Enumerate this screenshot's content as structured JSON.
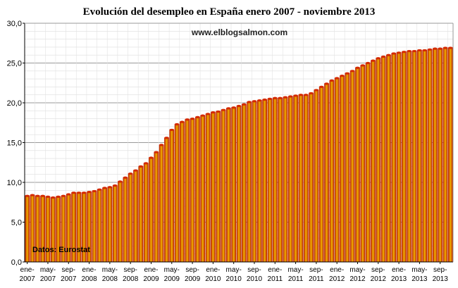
{
  "chart_data": {
    "type": "bar",
    "title": "Evolución del desempleo en España enero 2007 - noviembre 2013",
    "watermark": "www.elblogsalmon.com",
    "source_note": "Datos: Eurostat",
    "xlabel": "",
    "ylabel": "",
    "ylim": [
      0,
      30
    ],
    "y_ticks": [
      "0,0",
      "5,0",
      "10,0",
      "15,0",
      "20,0",
      "25,0",
      "30,0"
    ],
    "x_tick_labels": [
      [
        "ene-",
        "2007"
      ],
      [
        "may-",
        "2007"
      ],
      [
        "sep-",
        "2007"
      ],
      [
        "ene-",
        "2008"
      ],
      [
        "may-",
        "2008"
      ],
      [
        "sep-",
        "2008"
      ],
      [
        "ene-",
        "2009"
      ],
      [
        "may-",
        "2009"
      ],
      [
        "sep-",
        "2009"
      ],
      [
        "ene-",
        "2010"
      ],
      [
        "may-",
        "2010"
      ],
      [
        "sep-",
        "2010"
      ],
      [
        "ene-",
        "2011"
      ],
      [
        "may-",
        "2011"
      ],
      [
        "sep-",
        "2011"
      ],
      [
        "ene-",
        "2012"
      ],
      [
        "may-",
        "2012"
      ],
      [
        "sep-",
        "2012"
      ],
      [
        "ene-",
        "2013"
      ],
      [
        "may-",
        "2013"
      ],
      [
        "sep-",
        "2013"
      ]
    ],
    "grid": true,
    "colors": {
      "bar_edge": "#c81e00",
      "bar_mid": "#e8a800",
      "grid": "#cccccc"
    },
    "categories": [
      "2007-01",
      "2007-02",
      "2007-03",
      "2007-04",
      "2007-05",
      "2007-06",
      "2007-07",
      "2007-08",
      "2007-09",
      "2007-10",
      "2007-11",
      "2007-12",
      "2008-01",
      "2008-02",
      "2008-03",
      "2008-04",
      "2008-05",
      "2008-06",
      "2008-07",
      "2008-08",
      "2008-09",
      "2008-10",
      "2008-11",
      "2008-12",
      "2009-01",
      "2009-02",
      "2009-03",
      "2009-04",
      "2009-05",
      "2009-06",
      "2009-07",
      "2009-08",
      "2009-09",
      "2009-10",
      "2009-11",
      "2009-12",
      "2010-01",
      "2010-02",
      "2010-03",
      "2010-04",
      "2010-05",
      "2010-06",
      "2010-07",
      "2010-08",
      "2010-09",
      "2010-10",
      "2010-11",
      "2010-12",
      "2011-01",
      "2011-02",
      "2011-03",
      "2011-04",
      "2011-05",
      "2011-06",
      "2011-07",
      "2011-08",
      "2011-09",
      "2011-10",
      "2011-11",
      "2011-12",
      "2012-01",
      "2012-02",
      "2012-03",
      "2012-04",
      "2012-05",
      "2012-06",
      "2012-07",
      "2012-08",
      "2012-09",
      "2012-10",
      "2012-11",
      "2012-12",
      "2013-01",
      "2013-02",
      "2013-03",
      "2013-04",
      "2013-05",
      "2013-06",
      "2013-07",
      "2013-08",
      "2013-09",
      "2013-10",
      "2013-11"
    ],
    "values": [
      8.3,
      8.4,
      8.3,
      8.3,
      8.2,
      8.1,
      8.2,
      8.3,
      8.5,
      8.7,
      8.7,
      8.7,
      8.8,
      8.9,
      9.1,
      9.3,
      9.4,
      9.6,
      10.1,
      10.6,
      11.1,
      11.5,
      12.0,
      12.4,
      13.1,
      13.8,
      14.7,
      15.6,
      16.6,
      17.3,
      17.6,
      17.9,
      18.0,
      18.2,
      18.4,
      18.6,
      18.8,
      18.9,
      19.1,
      19.3,
      19.4,
      19.6,
      19.8,
      20.1,
      20.2,
      20.3,
      20.4,
      20.5,
      20.6,
      20.6,
      20.7,
      20.8,
      20.9,
      21.0,
      21.0,
      21.2,
      21.6,
      22.0,
      22.4,
      22.8,
      23.1,
      23.4,
      23.7,
      24.0,
      24.4,
      24.7,
      25.0,
      25.3,
      25.6,
      25.8,
      26.0,
      26.2,
      26.3,
      26.4,
      26.5,
      26.5,
      26.6,
      26.6,
      26.7,
      26.8,
      26.8,
      26.9,
      26.9
    ]
  }
}
